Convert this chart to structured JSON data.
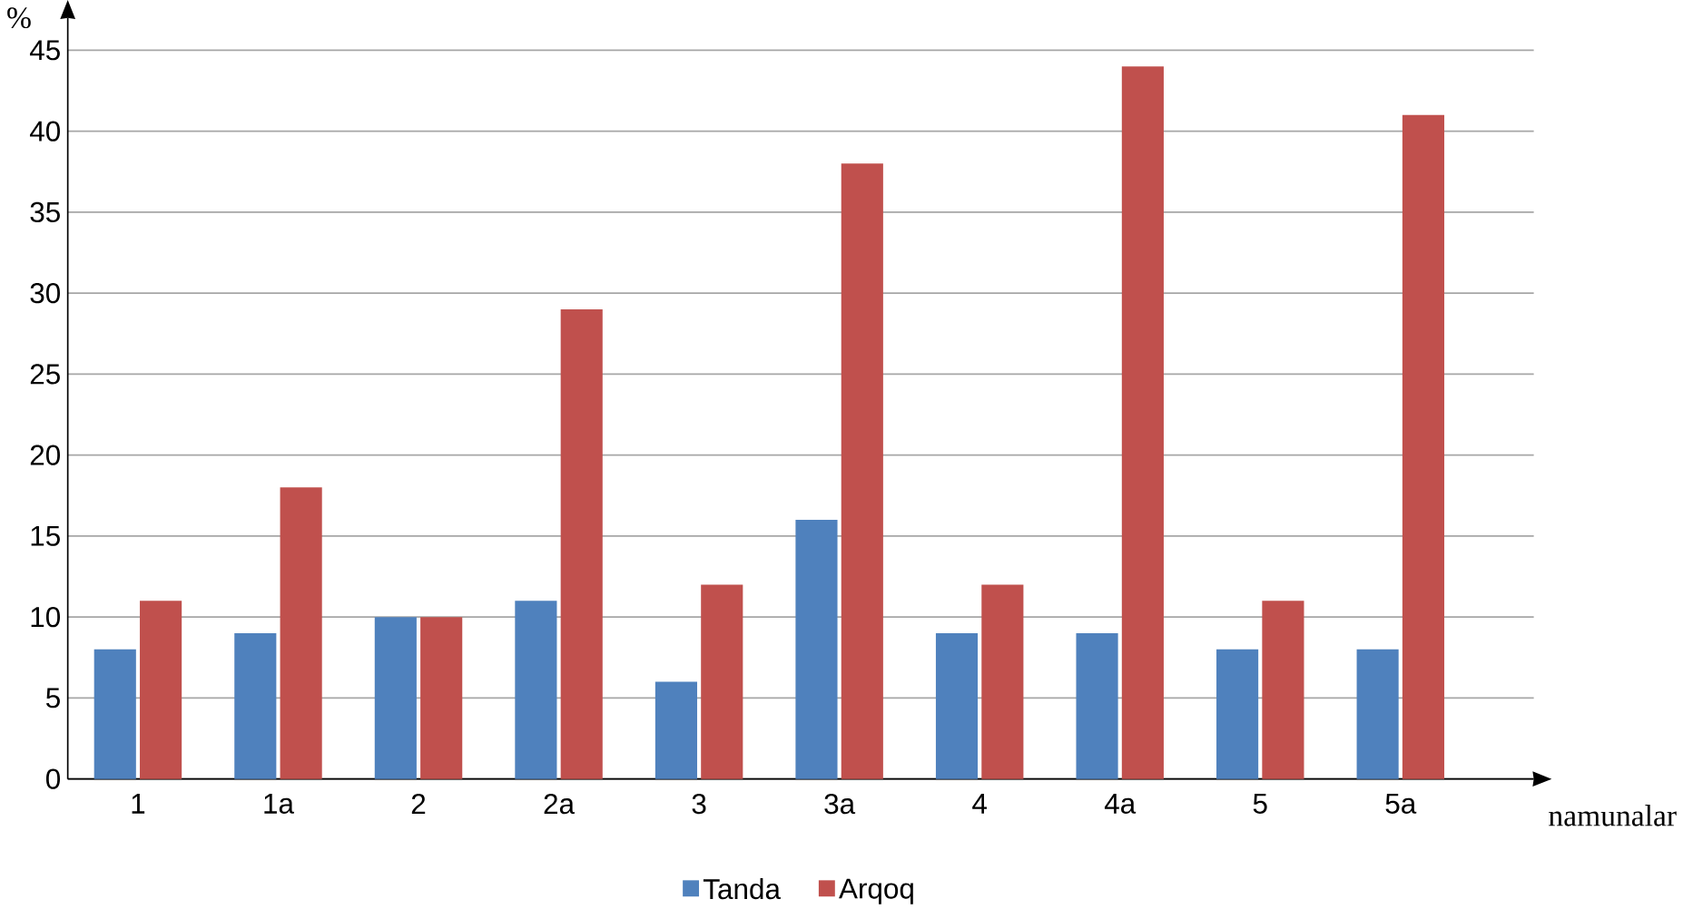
{
  "chart_data": {
    "type": "bar",
    "ylabel": "%",
    "xlabel": "namunalar",
    "categories": [
      "1",
      "1a",
      "2",
      "2a",
      "3",
      "3a",
      "4",
      "4a",
      "5",
      "5a"
    ],
    "series": [
      {
        "name": "Tanda",
        "color": "#4f81bd",
        "values": [
          8,
          9,
          10,
          11,
          6,
          16,
          9,
          9,
          8,
          8
        ]
      },
      {
        "name": "Arqoq",
        "color": "#c0504d",
        "values": [
          11,
          18,
          10,
          29,
          12,
          38,
          12,
          44,
          11,
          41
        ]
      }
    ],
    "ylim": [
      0,
      47
    ],
    "yticks": [
      0,
      5,
      10,
      15,
      20,
      25,
      30,
      35,
      40,
      45
    ],
    "grid": "y",
    "legend": "bottom"
  }
}
